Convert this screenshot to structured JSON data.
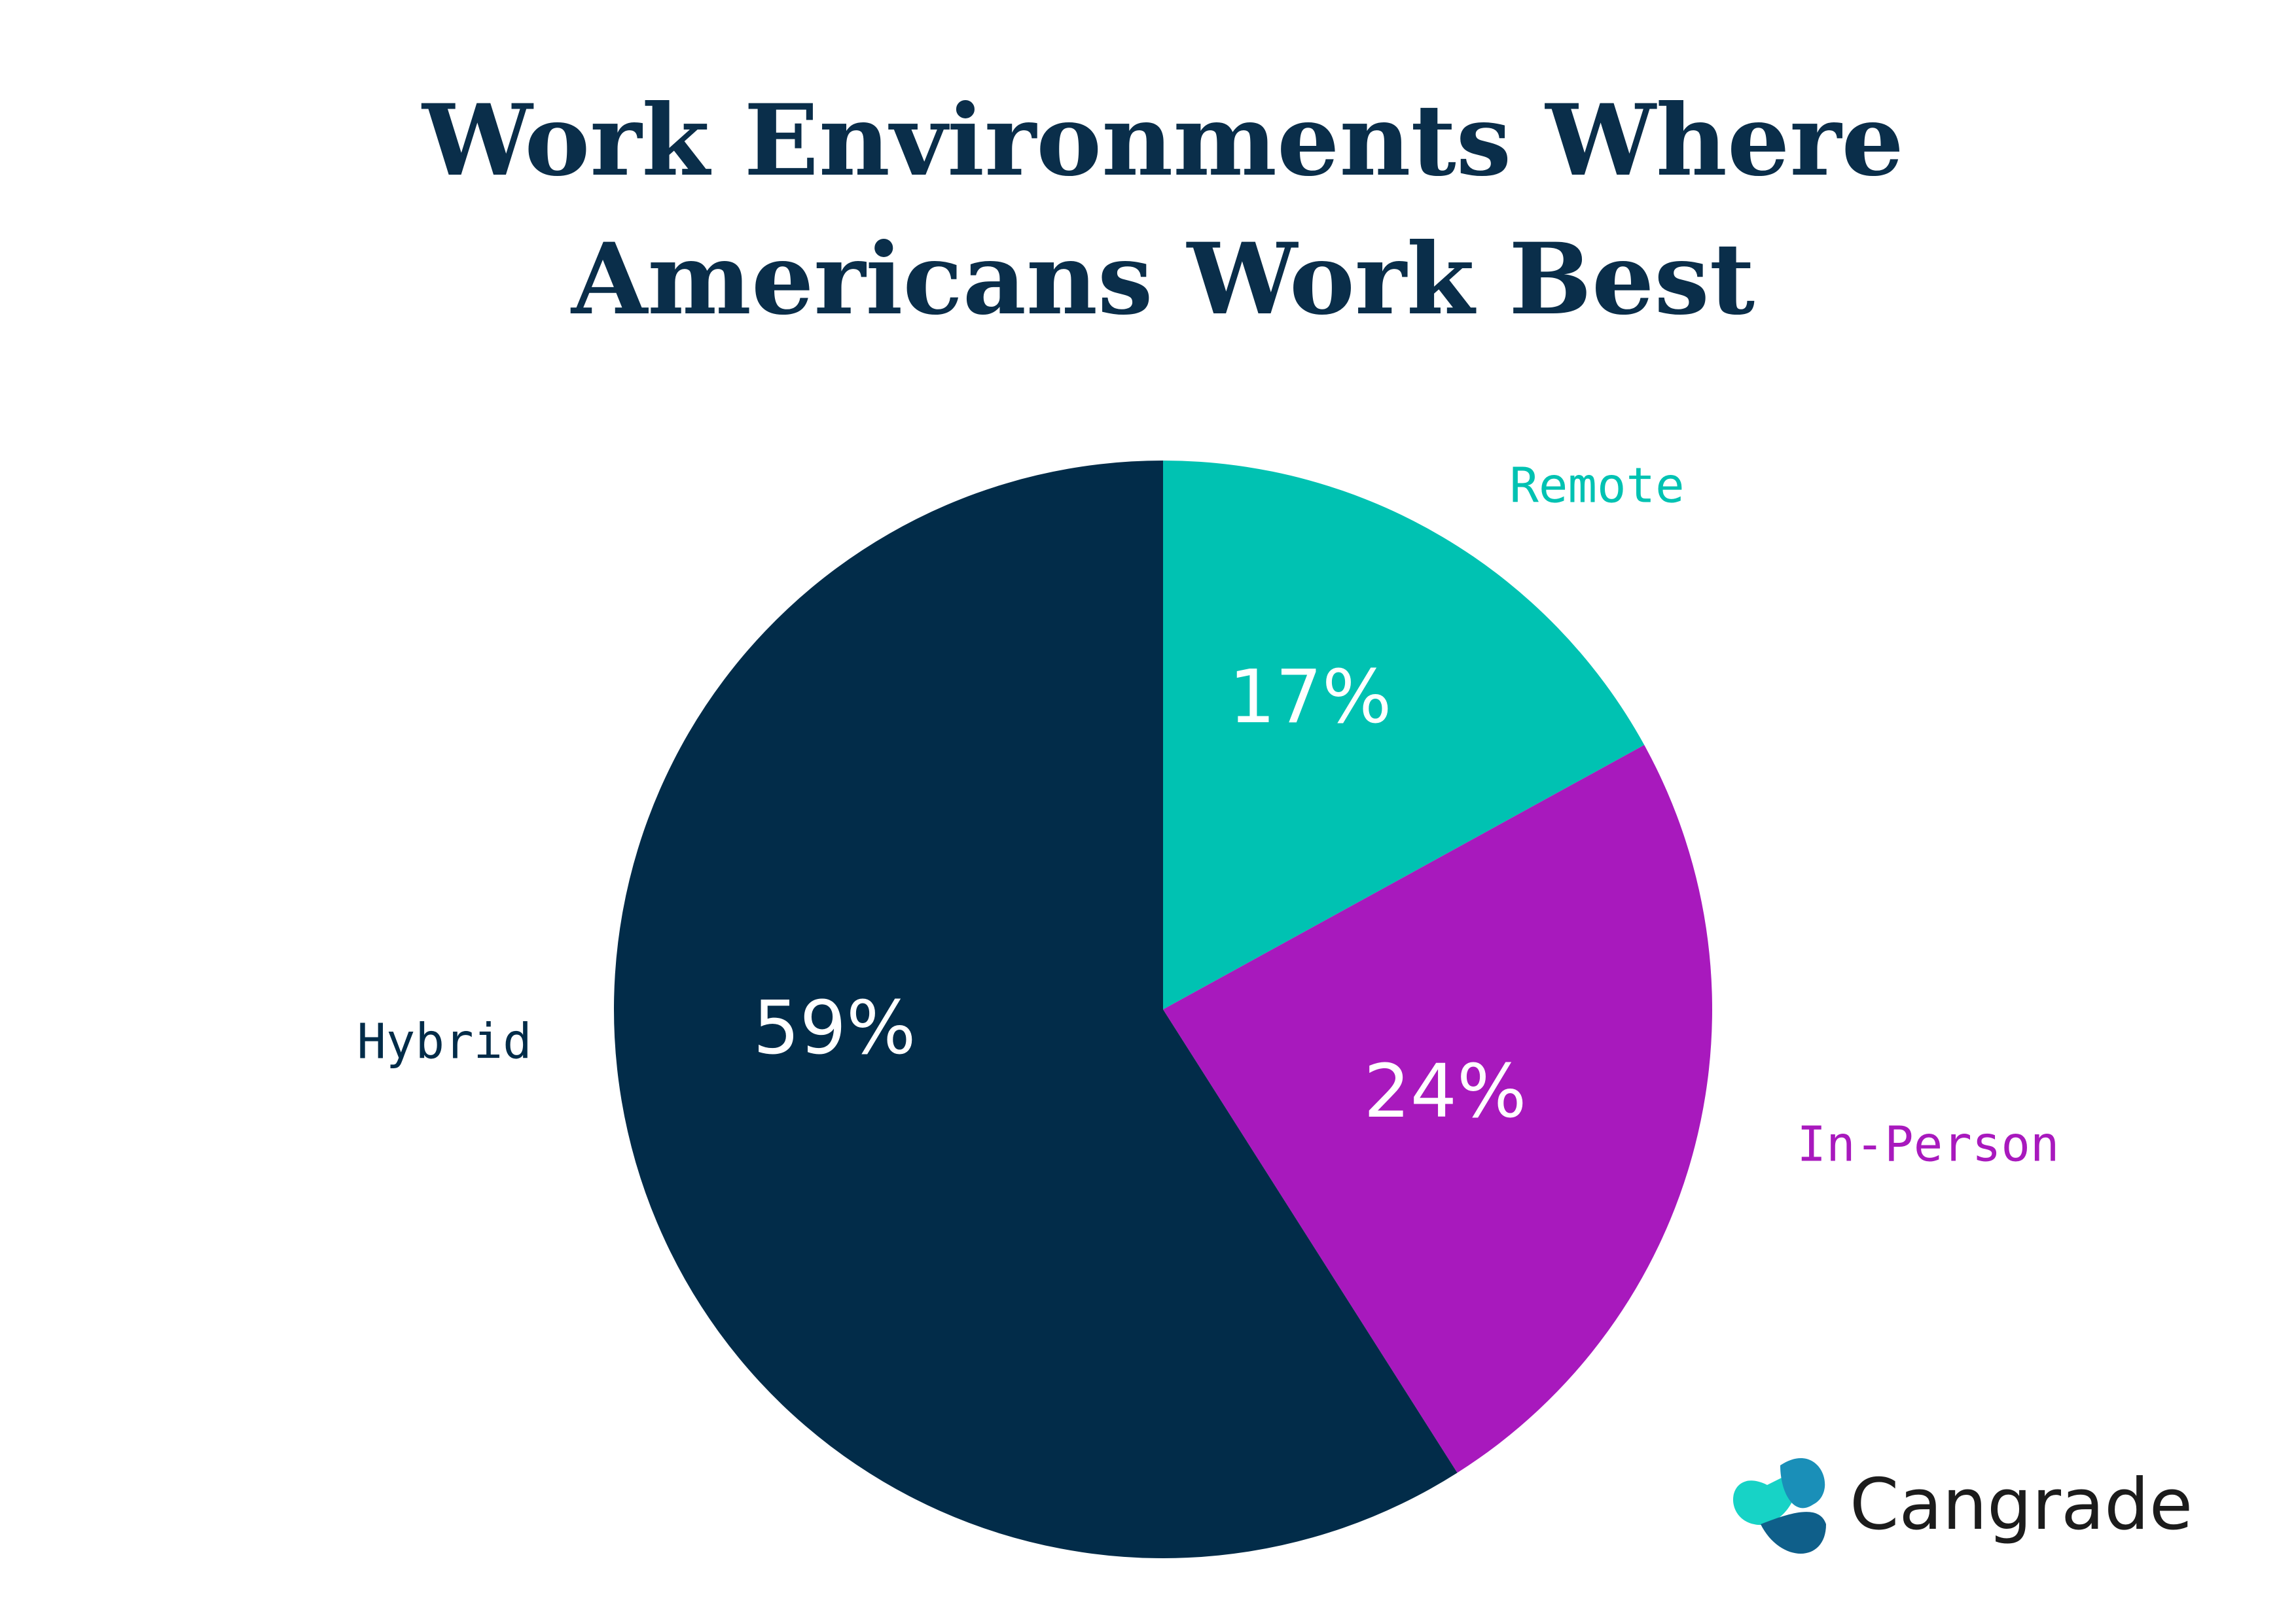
{
  "chart_data": {
    "type": "pie",
    "title_lines": [
      "Work Environments Where",
      "Americans Work Best"
    ],
    "categories": [
      "Remote",
      "In-Person",
      "Hybrid"
    ],
    "values": [
      17,
      24,
      59
    ],
    "value_labels": [
      "17%",
      "24%",
      "59%"
    ],
    "colors": [
      "#00c2b2",
      "#a819bd",
      "#022c49"
    ]
  },
  "brand": "Cangrade"
}
